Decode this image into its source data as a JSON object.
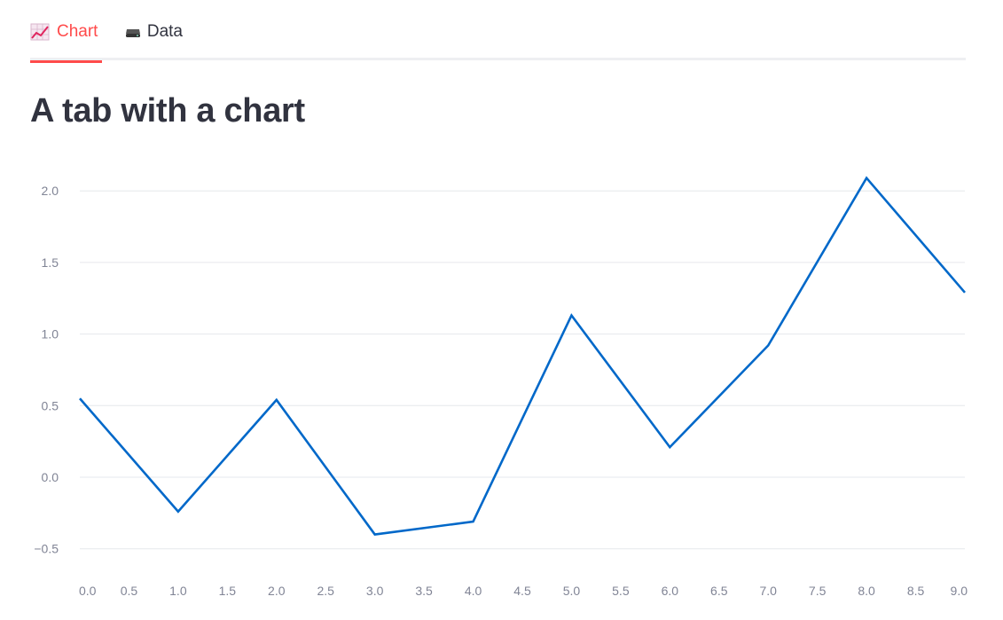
{
  "tabs": [
    {
      "label": "Chart",
      "icon": "chart-increasing-icon",
      "active": true
    },
    {
      "label": "Data",
      "icon": "drive-icon",
      "active": false
    }
  ],
  "page_title": "A tab with a chart",
  "colors": {
    "accent": "#ff4b4b",
    "line": "#0068c9",
    "grid": "#e6e8ec",
    "tick": "#808495"
  },
  "chart_data": {
    "type": "line",
    "title": "",
    "xlabel": "",
    "ylabel": "",
    "x": [
      0,
      1,
      2,
      3,
      4,
      5,
      6,
      7,
      8,
      9
    ],
    "series": [
      {
        "values": [
          0.55,
          -0.24,
          0.54,
          -0.4,
          -0.31,
          1.13,
          0.21,
          0.92,
          2.09,
          1.29
        ]
      }
    ],
    "xlim": [
      0,
      9
    ],
    "ylim": [
      -0.6,
      2.1
    ],
    "x_ticks": [
      "0.0",
      "0.5",
      "1.0",
      "1.5",
      "2.0",
      "2.5",
      "3.0",
      "3.5",
      "4.0",
      "4.5",
      "5.0",
      "5.5",
      "6.0",
      "6.5",
      "7.0",
      "7.5",
      "8.0",
      "8.5",
      "9.0"
    ],
    "y_ticks": [
      "−0.5",
      "0.0",
      "0.5",
      "1.0",
      "1.5",
      "2.0"
    ],
    "grid": true,
    "legend": "none"
  }
}
